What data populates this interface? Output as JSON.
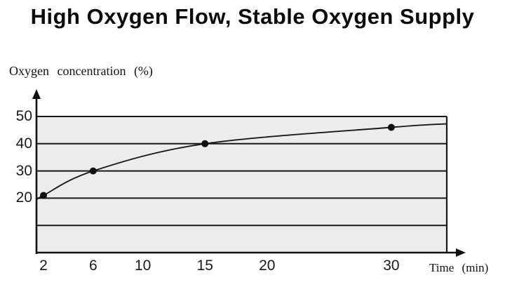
{
  "chart_data": {
    "type": "line",
    "title": "High Oxygen Flow, Stable Oxygen Supply",
    "xlabel": "Time (min)",
    "ylabel": "Oxygen concentration (%)",
    "series": [
      {
        "name": "Oxygen concentration",
        "x": [
          2,
          6,
          15,
          30
        ],
        "y": [
          21,
          30,
          40,
          46
        ]
      }
    ],
    "curve_points": [
      [
        1.44,
        19.3
      ],
      [
        2,
        21
      ],
      [
        6,
        30
      ],
      [
        15,
        40
      ],
      [
        30,
        46
      ],
      [
        34.5,
        47.3
      ]
    ],
    "x_ticks": [
      2,
      6,
      10,
      15,
      20,
      30
    ],
    "y_ticks": [
      50,
      40,
      30,
      20
    ],
    "gridlines_y": [
      10,
      20,
      30,
      40,
      50
    ],
    "xlim": [
      1.4,
      34.5
    ],
    "ylim": [
      0,
      57
    ],
    "grid": "horizontal-only",
    "legend": "none",
    "marker_style": "filled-circle",
    "colors": {
      "plot_background": "#ececec",
      "grid": "#1a1a1a",
      "axis": "#111111",
      "line": "#1a1a1a",
      "marker": "#111111",
      "text": "#111111"
    }
  }
}
